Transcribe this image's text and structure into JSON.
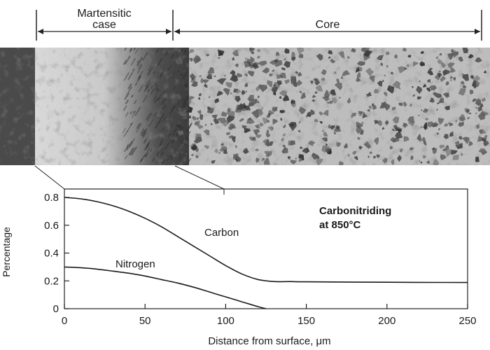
{
  "figure": {
    "regions": {
      "case_label_line1": "Martensitic",
      "case_label_line2": "case",
      "core_label": "Core"
    },
    "micrograph": {
      "description_icon": "microstructure-photo"
    }
  },
  "chart_data": {
    "type": "line",
    "title": "Carbonitriding\nat 850°C",
    "title_line1": "Carbonitriding",
    "title_line2": "at 850°C",
    "xlabel": "Distance from surface, μm",
    "ylabel": "Percentage",
    "xlim": [
      0,
      250
    ],
    "ylim": [
      0,
      0.8
    ],
    "xticks": [
      0,
      50,
      100,
      150,
      200,
      250
    ],
    "yticks": [
      0,
      0.2,
      0.4,
      0.6,
      0.8
    ],
    "xtick_labels": [
      "0",
      "50",
      "100",
      "150",
      "200",
      "250"
    ],
    "ytick_labels": [
      "0",
      "0.2",
      "0.4",
      "0.6",
      "0.8"
    ],
    "grid": false,
    "series": [
      {
        "name": "Carbon",
        "x": [
          0,
          10,
          20,
          30,
          40,
          50,
          60,
          70,
          80,
          90,
          100,
          110,
          120,
          130,
          140,
          150,
          200,
          250
        ],
        "y": [
          0.8,
          0.79,
          0.77,
          0.74,
          0.7,
          0.65,
          0.59,
          0.52,
          0.45,
          0.38,
          0.31,
          0.25,
          0.21,
          0.195,
          0.195,
          0.193,
          0.19,
          0.188
        ]
      },
      {
        "name": "Nitrogen",
        "x": [
          0,
          10,
          20,
          30,
          40,
          50,
          60,
          70,
          80,
          90,
          100,
          110,
          120,
          125
        ],
        "y": [
          0.3,
          0.295,
          0.285,
          0.27,
          0.255,
          0.235,
          0.21,
          0.185,
          0.155,
          0.12,
          0.085,
          0.05,
          0.015,
          0.0
        ]
      }
    ]
  }
}
